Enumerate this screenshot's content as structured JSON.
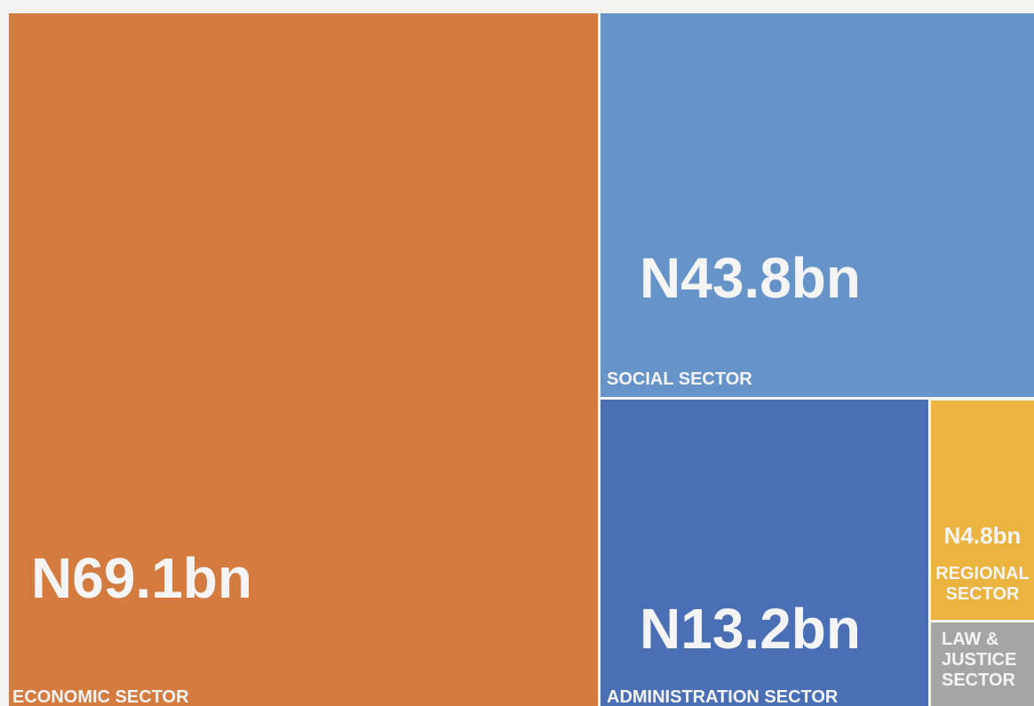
{
  "chart_data": {
    "type": "treemap",
    "categories": [
      "ECONOMIC SECTOR",
      "SOCIAL SECTOR",
      "ADMINISTRATION SECTOR",
      "REGIONAL SECTOR",
      "LAW & JUSTICE SECTOR"
    ],
    "values": [
      69.1,
      43.8,
      13.2,
      4.8,
      1.8
    ],
    "value_labels": [
      "N69.1bn",
      "N43.8bn",
      "N13.2bn",
      "N4.8bn",
      null
    ],
    "colors": [
      "#d47b3f",
      "#6794c8",
      "#4a6fb5",
      "#ebb43e",
      "#a5a5a5"
    ]
  }
}
